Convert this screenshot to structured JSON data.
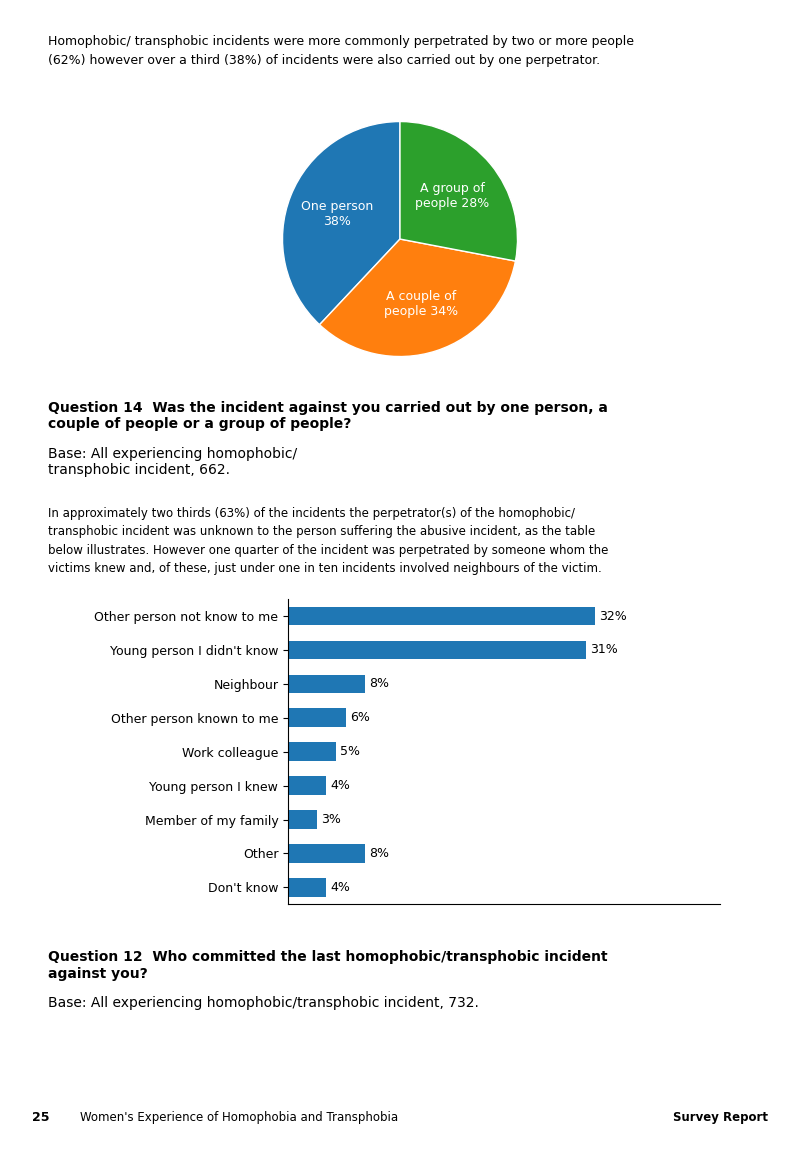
{
  "chart_data": [
    {
      "type": "pie",
      "title": "Question 14  Was the incident against you carried out by one person, a\ncouple of people or a group of people?",
      "subtitle": "Base: All experiencing homophobic/\ntransphobic incident, 662.",
      "values": [
        38,
        34,
        28
      ],
      "value_labels": [
        "One person\n38%",
        "A couple of\npeople 34%",
        "A group of\npeople 28%"
      ],
      "data_labels": true,
      "annotations": [
        "Homophobic/ transphobic incidents were more commonly perpetrated by two or more people",
        "(62%) however over a third (38%) of incidents were also carried out by one perpetrator."
      ]
    },
    {
      "type": "bar",
      "orientation": "horizontal",
      "title": "Question 12  Who committed the last homophobic/transphobic incident\nagainst you?",
      "subtitle": "Base: All experiencing homophobic/transphobic incident, 732.",
      "categories": [
        "Other person not know to me",
        "Young person I didn't know",
        "Neighbour",
        "Other person known to me",
        "Work colleague",
        "Young person I knew",
        "Member of my family",
        "Other",
        "Don't know"
      ],
      "values": [
        32,
        31,
        8,
        6,
        5,
        4,
        3,
        8,
        4
      ],
      "value_labels": [
        "32%",
        "31%",
        "8%",
        "6%",
        "5%",
        "4%",
        "3%",
        "8%",
        "4%"
      ],
      "data_labels": true,
      "xlim": [
        0,
        45
      ],
      "xticks": [],
      "tick_labels": "y",
      "annotations": [
        "In approximately two thirds (63%) of the incidents the perpetrator(s) of the homophobic/",
        "transphobic incident was unknown to the person suffering the abusive incident, as the table",
        "below illustrates. However one quarter of the incident was perpetrated by someone whom the",
        "victims knew and, of these, just under one in ten incidents involved neighbours of the victim.",
        "25",
        "Women's Experience of Homophobia and Transphobia",
        "Survey Report"
      ]
    }
  ]
}
